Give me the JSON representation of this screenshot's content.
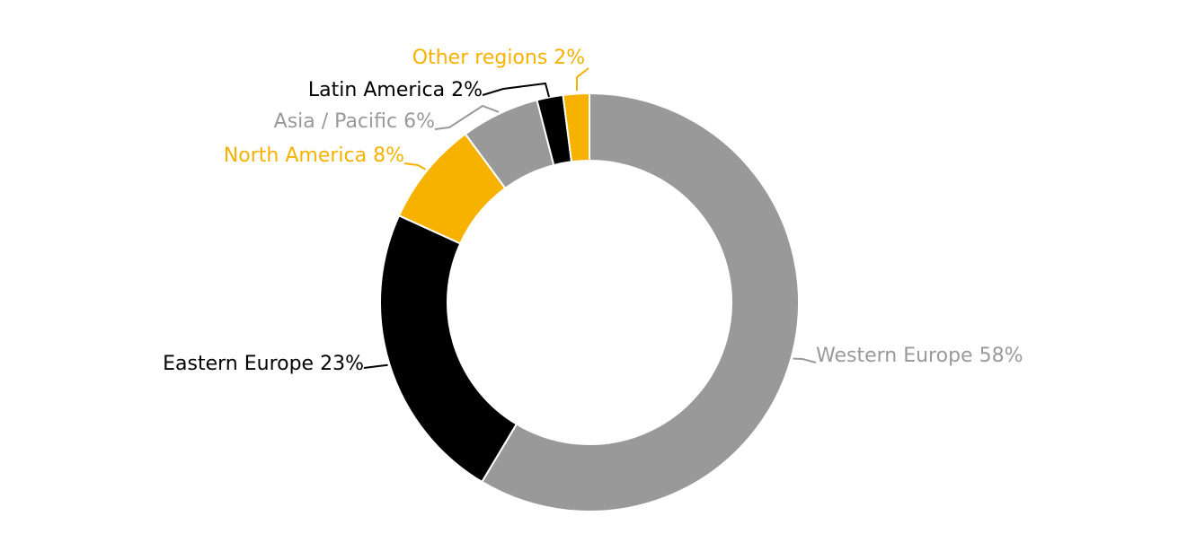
{
  "chart_data": {
    "type": "donut",
    "categories": [
      "Western Europe",
      "Eastern Europe",
      "North America",
      "Asia / Pacific",
      "Latin America",
      "Other regions"
    ],
    "values": [
      58,
      23,
      8,
      6,
      2,
      2
    ],
    "value_labels": [
      "58%",
      "23%",
      "8%",
      "6%",
      "2%",
      "2%"
    ],
    "colors": [
      "#999999",
      "#000000",
      "#f7b200",
      "#999999",
      "#000000",
      "#f7b200"
    ]
  }
}
